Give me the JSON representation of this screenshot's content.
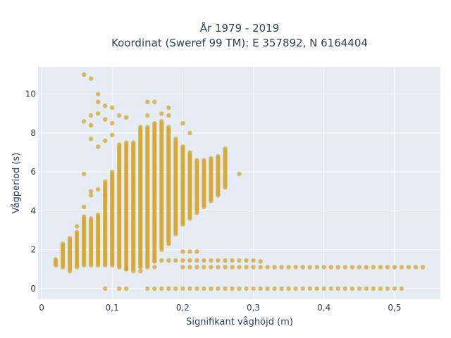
{
  "chart_data": {
    "type": "scatter",
    "title": "År 1979 - 2019",
    "subtitle": "Koordinat (Sweref 99 TM): E 357892, N 6164404",
    "xlabel": "Signifikant våghöjd (m)",
    "ylabel": "Vågperiod (s)",
    "xlim": [
      -0.005,
      0.565
    ],
    "ylim": [
      -0.55,
      11.4
    ],
    "x_ticks": [
      0,
      0.1,
      0.2,
      0.3,
      0.4,
      0.5
    ],
    "x_tick_labels": [
      "0",
      "0,1",
      "0,2",
      "0,3",
      "0,4",
      "0,5"
    ],
    "y_ticks": [
      0,
      2,
      4,
      6,
      8,
      10
    ],
    "y_tick_labels": [
      "0",
      "2",
      "4",
      "6",
      "8",
      "10"
    ],
    "grid": true,
    "legend": false,
    "colors": {
      "marker": "#d4a62a",
      "plot_background": "#e5ecf6",
      "grid": "#ffffff",
      "text": "#2a3f5f"
    },
    "series": [
      {
        "x_step": 0.01,
        "columns": [
          {
            "x": 0.02,
            "ymin": 1.2,
            "ymax": 1.5
          },
          {
            "x": 0.03,
            "ymin": 1.1,
            "ymax": 2.3
          },
          {
            "x": 0.04,
            "ymin": 1.0,
            "ymax": 2.6
          },
          {
            "x": 0.05,
            "ymin": 1.1,
            "ymax": 2.9
          },
          {
            "x": 0.06,
            "ymin": 1.2,
            "ymax": 3.7
          },
          {
            "x": 0.07,
            "ymin": 1.2,
            "ymax": 3.6
          },
          {
            "x": 0.08,
            "ymin": 1.2,
            "ymax": 3.8
          },
          {
            "x": 0.09,
            "ymin": 1.2,
            "ymax": 5.5
          },
          {
            "x": 0.1,
            "ymin": 1.2,
            "ymax": 6.0
          },
          {
            "x": 0.11,
            "ymin": 1.1,
            "ymax": 7.4
          },
          {
            "x": 0.12,
            "ymin": 1.0,
            "ymax": 7.5
          },
          {
            "x": 0.13,
            "ymin": 1.0,
            "ymax": 7.5
          },
          {
            "x": 0.14,
            "ymin": 1.1,
            "ymax": 8.3
          },
          {
            "x": 0.15,
            "ymin": 1.2,
            "ymax": 8.3
          },
          {
            "x": 0.16,
            "ymin": 1.4,
            "ymax": 8.5
          },
          {
            "x": 0.17,
            "ymin": 2.0,
            "ymax": 8.6
          },
          {
            "x": 0.18,
            "ymin": 2.3,
            "ymax": 8.3
          },
          {
            "x": 0.19,
            "ymin": 2.8,
            "ymax": 7.7
          },
          {
            "x": 0.2,
            "ymin": 3.3,
            "ymax": 7.3
          },
          {
            "x": 0.21,
            "ymin": 3.6,
            "ymax": 7.0
          },
          {
            "x": 0.22,
            "ymin": 3.9,
            "ymax": 6.6
          },
          {
            "x": 0.23,
            "ymin": 4.2,
            "ymax": 6.6
          },
          {
            "x": 0.24,
            "ymin": 4.5,
            "ymax": 6.7
          },
          {
            "x": 0.25,
            "ymin": 4.8,
            "ymax": 6.8
          },
          {
            "x": 0.26,
            "ymin": 5.2,
            "ymax": 7.2
          }
        ],
        "lines": [
          {
            "y": 1.1,
            "x_start": 0.2,
            "x_end": 0.54
          },
          {
            "y": 1.45,
            "x_start": 0.16,
            "x_end": 0.3
          },
          {
            "y": 0.0,
            "x_start": 0.15,
            "x_end": 0.51
          }
        ],
        "points": [
          {
            "x": 0.06,
            "y": 11.0
          },
          {
            "x": 0.07,
            "y": 10.8
          },
          {
            "x": 0.08,
            "y": 10.0
          },
          {
            "x": 0.08,
            "y": 9.6
          },
          {
            "x": 0.09,
            "y": 9.4
          },
          {
            "x": 0.1,
            "y": 9.3
          },
          {
            "x": 0.08,
            "y": 9.0
          },
          {
            "x": 0.07,
            "y": 8.9
          },
          {
            "x": 0.06,
            "y": 8.6
          },
          {
            "x": 0.07,
            "y": 8.4
          },
          {
            "x": 0.09,
            "y": 8.7
          },
          {
            "x": 0.1,
            "y": 8.5
          },
          {
            "x": 0.11,
            "y": 8.9
          },
          {
            "x": 0.12,
            "y": 8.8
          },
          {
            "x": 0.07,
            "y": 7.7
          },
          {
            "x": 0.08,
            "y": 7.3
          },
          {
            "x": 0.09,
            "y": 7.6
          },
          {
            "x": 0.1,
            "y": 7.9
          },
          {
            "x": 0.15,
            "y": 9.6
          },
          {
            "x": 0.16,
            "y": 9.6
          },
          {
            "x": 0.15,
            "y": 8.9
          },
          {
            "x": 0.17,
            "y": 9.0
          },
          {
            "x": 0.18,
            "y": 9.3
          },
          {
            "x": 0.18,
            "y": 8.9
          },
          {
            "x": 0.2,
            "y": 8.5
          },
          {
            "x": 0.21,
            "y": 8.0
          },
          {
            "x": 0.06,
            "y": 5.9
          },
          {
            "x": 0.07,
            "y": 4.8
          },
          {
            "x": 0.07,
            "y": 5.0
          },
          {
            "x": 0.08,
            "y": 5.1
          },
          {
            "x": 0.09,
            "y": 4.8
          },
          {
            "x": 0.28,
            "y": 5.9
          },
          {
            "x": 0.31,
            "y": 1.4
          },
          {
            "x": 0.09,
            "y": 0.0
          },
          {
            "x": 0.11,
            "y": 0.0
          },
          {
            "x": 0.12,
            "y": 0.0
          },
          {
            "x": 0.2,
            "y": 1.9
          },
          {
            "x": 0.21,
            "y": 1.9
          },
          {
            "x": 0.22,
            "y": 1.9
          },
          {
            "x": 0.05,
            "y": 3.2
          },
          {
            "x": 0.06,
            "y": 4.2
          },
          {
            "x": 0.04,
            "y": 0.9
          },
          {
            "x": 0.12,
            "y": 1.0
          },
          {
            "x": 0.13,
            "y": 0.9
          },
          {
            "x": 0.14,
            "y": 0.9
          },
          {
            "x": 0.15,
            "y": 1.1
          },
          {
            "x": 0.16,
            "y": 1.1
          }
        ]
      }
    ]
  }
}
